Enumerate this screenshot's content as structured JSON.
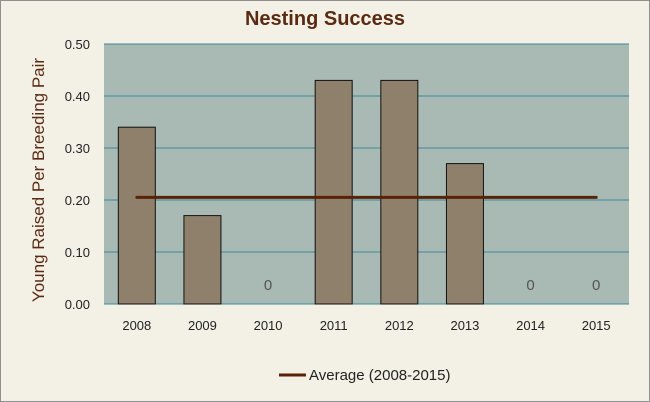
{
  "chart_data": {
    "type": "bar",
    "title": "Nesting Success",
    "ylabel": "Young Raised Per Breeding Pair",
    "xlabel": "",
    "categories": [
      "2008",
      "2009",
      "2010",
      "2011",
      "2012",
      "2013",
      "2014",
      "2015"
    ],
    "values": [
      0.34,
      0.17,
      0,
      0.43,
      0.43,
      0.27,
      0,
      0
    ],
    "zero_labels": [
      {
        "category": "2010",
        "text": "0"
      },
      {
        "category": "2014",
        "text": "0"
      },
      {
        "category": "2015",
        "text": "0"
      }
    ],
    "ylim": [
      0,
      0.5
    ],
    "yticks": [
      "0.00",
      "0.10",
      "0.20",
      "0.30",
      "0.40",
      "0.50"
    ],
    "average": {
      "name": "Average (2008-2015)",
      "value": 0.205
    },
    "grid": true,
    "legend_position": "bottom",
    "colors": {
      "bar_fill": "#8e806a",
      "bar_stroke": "#111111",
      "plot_bg": "#a9b9b3",
      "gridline": "#3a8b98",
      "average_line": "#5a2308",
      "title": "#5b2a12"
    }
  }
}
